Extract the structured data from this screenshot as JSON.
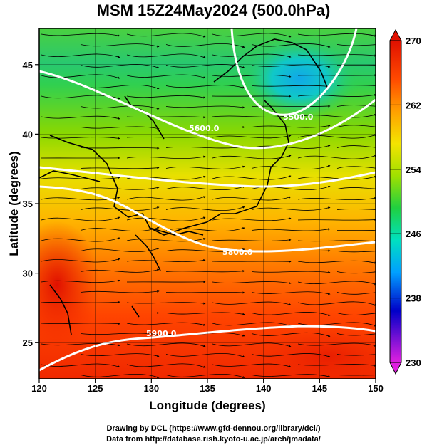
{
  "title": "MSM 15Z24May2024 (500.0hPa)",
  "map": {
    "xlabel": "Longitude (degrees)",
    "ylabel": "Latitude  (degrees)",
    "lon_ticks": [
      "120",
      "125",
      "130",
      "135",
      "140",
      "145",
      "150"
    ],
    "lat_ticks": [
      "25",
      "30",
      "35",
      "40",
      "45"
    ],
    "lon_range": [
      120,
      150
    ],
    "lat_range": [
      22.4,
      47.6
    ],
    "contour_labels": [
      "5500.0",
      "5600.0",
      "5800.0",
      "5900.0"
    ]
  },
  "colorbar": {
    "ticks": [
      "270",
      "262",
      "254",
      "246",
      "238",
      "230"
    ],
    "range": [
      230,
      270
    ],
    "colors": [
      "#e020e0",
      "#0000c8",
      "#00a0ff",
      "#00e0c0",
      "#20d040",
      "#a0e000",
      "#f0e000",
      "#ffa000",
      "#ff4000",
      "#e01000"
    ]
  },
  "credits": {
    "line1": "Drawing by DCL (https://www.gfd-dennou.org/library/dcl/)",
    "line2": "Data from http://database.rish.kyoto-u.ac.jp/arch/jmadata/"
  }
}
